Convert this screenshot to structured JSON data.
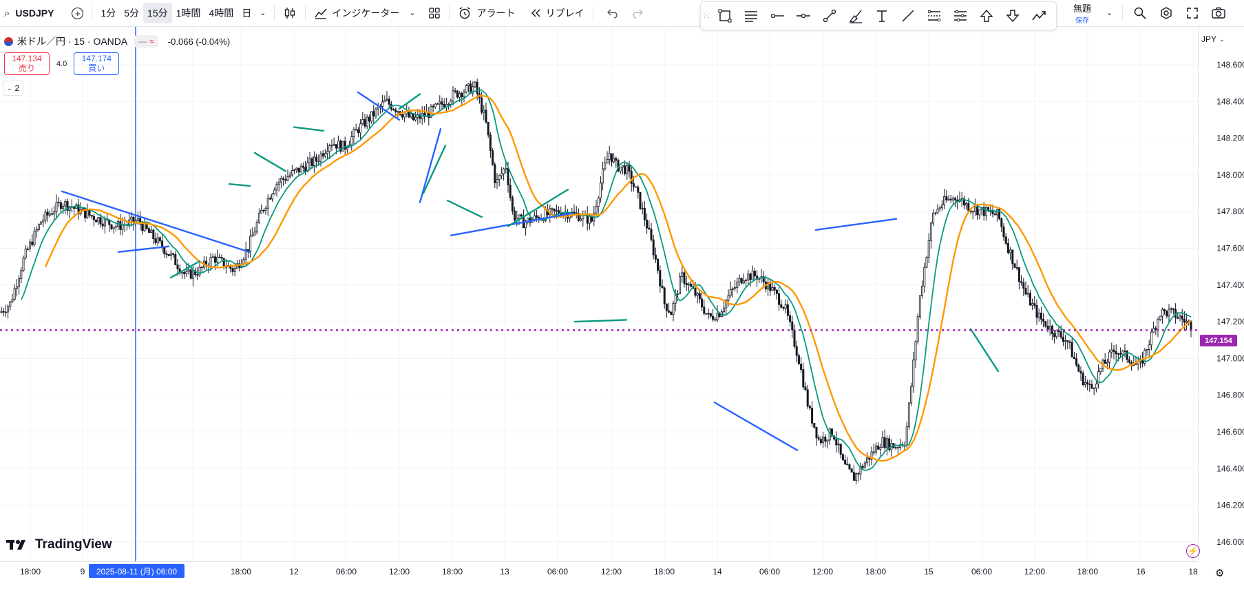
{
  "toolbar": {
    "symbol": "USDJPY",
    "intervals": [
      "1分",
      "5分",
      "15分",
      "1時間",
      "4時間",
      "日"
    ],
    "active_interval": "15分",
    "indicators_label": "インジケーター",
    "alert_label": "アラート",
    "replay_label": "リプレイ"
  },
  "layout": {
    "title": "無題",
    "save_label": "保存"
  },
  "legend": {
    "title": "米ドル／円 · 15 · OANDA",
    "change": "-0.066 (-0.04%)",
    "sell_price": "147.134",
    "sell_label": "売り",
    "spread": "4.0",
    "buy_price": "147.174",
    "buy_label": "買い",
    "indicator_count": "2"
  },
  "axis": {
    "currency": "JPY",
    "current_price": "147.154",
    "crosshair_date": "2025-08-11 (月)   06:00"
  },
  "brand": {
    "logo_text": "TradingView"
  },
  "colors": {
    "candle": "#131722",
    "ma_fast": "#089981",
    "ma_slow": "#ff9800",
    "trendline_blue": "#2962ff",
    "trendline_green": "#089981",
    "price_line": "#9c27b0",
    "crosshair": "#2962ff"
  },
  "chart_data": {
    "type": "candlestick",
    "symbol": "USDJPY",
    "timeframe": "15",
    "y_ticks": [
      "148.600",
      "148.400",
      "148.200",
      "148.000",
      "147.800",
      "147.600",
      "147.400",
      "147.200",
      "147.000",
      "146.800",
      "146.600",
      "146.400",
      "146.200",
      "146.000"
    ],
    "ylim": [
      145.98,
      148.72
    ],
    "x_ticks": [
      "18:00",
      "9",
      "12:00",
      "18:00",
      "12",
      "06:00",
      "12:00",
      "18:00",
      "13",
      "06:00",
      "12:00",
      "18:00",
      "14",
      "06:00",
      "12:00",
      "18:00",
      "15",
      "06:00",
      "12:00",
      "18:00",
      "16",
      "18"
    ],
    "current_price": 147.154,
    "path": [
      [
        0,
        147.25
      ],
      [
        15,
        147.3
      ],
      [
        35,
        147.55
      ],
      [
        60,
        147.75
      ],
      [
        90,
        147.85
      ],
      [
        130,
        147.78
      ],
      [
        170,
        147.72
      ],
      [
        200,
        147.75
      ],
      [
        225,
        147.65
      ],
      [
        250,
        147.55
      ],
      [
        270,
        147.45
      ],
      [
        290,
        147.48
      ],
      [
        310,
        147.55
      ],
      [
        340,
        147.48
      ],
      [
        360,
        147.6
      ],
      [
        380,
        147.8
      ],
      [
        400,
        147.95
      ],
      [
        430,
        148.02
      ],
      [
        460,
        148.08
      ],
      [
        480,
        148.18
      ],
      [
        500,
        148.15
      ],
      [
        520,
        148.25
      ],
      [
        540,
        148.32
      ],
      [
        560,
        148.4
      ],
      [
        580,
        148.35
      ],
      [
        600,
        148.3
      ],
      [
        620,
        148.33
      ],
      [
        640,
        148.38
      ],
      [
        660,
        148.44
      ],
      [
        690,
        148.48
      ],
      [
        705,
        148.3
      ],
      [
        720,
        147.95
      ],
      [
        735,
        148.05
      ],
      [
        745,
        147.78
      ],
      [
        760,
        147.74
      ],
      [
        790,
        147.78
      ],
      [
        815,
        147.8
      ],
      [
        840,
        147.78
      ],
      [
        860,
        147.75
      ],
      [
        875,
        148.0
      ],
      [
        885,
        148.12
      ],
      [
        895,
        148.05
      ],
      [
        910,
        148.03
      ],
      [
        925,
        147.9
      ],
      [
        940,
        147.72
      ],
      [
        955,
        147.5
      ],
      [
        965,
        147.3
      ],
      [
        975,
        147.25
      ],
      [
        990,
        147.45
      ],
      [
        1010,
        147.35
      ],
      [
        1030,
        147.22
      ],
      [
        1045,
        147.25
      ],
      [
        1060,
        147.35
      ],
      [
        1080,
        147.45
      ],
      [
        1100,
        147.45
      ],
      [
        1120,
        147.38
      ],
      [
        1140,
        147.28
      ],
      [
        1160,
        147.0
      ],
      [
        1175,
        146.72
      ],
      [
        1190,
        146.55
      ],
      [
        1210,
        146.6
      ],
      [
        1225,
        146.42
      ],
      [
        1240,
        146.35
      ],
      [
        1260,
        146.45
      ],
      [
        1280,
        146.55
      ],
      [
        1300,
        146.52
      ],
      [
        1315,
        146.55
      ],
      [
        1325,
        146.9
      ],
      [
        1335,
        147.3
      ],
      [
        1345,
        147.55
      ],
      [
        1355,
        147.78
      ],
      [
        1370,
        147.85
      ],
      [
        1390,
        147.88
      ],
      [
        1410,
        147.82
      ],
      [
        1430,
        147.8
      ],
      [
        1450,
        147.78
      ],
      [
        1460,
        147.65
      ],
      [
        1475,
        147.5
      ],
      [
        1490,
        147.35
      ],
      [
        1510,
        147.22
      ],
      [
        1530,
        147.15
      ],
      [
        1550,
        147.1
      ],
      [
        1570,
        146.9
      ],
      [
        1585,
        146.83
      ],
      [
        1600,
        146.95
      ],
      [
        1620,
        147.05
      ],
      [
        1640,
        147.0
      ],
      [
        1655,
        146.95
      ],
      [
        1670,
        147.1
      ],
      [
        1685,
        147.25
      ],
      [
        1700,
        147.25
      ],
      [
        1715,
        147.22
      ],
      [
        1730,
        147.18
      ]
    ],
    "trendlines": [
      {
        "color": "blue",
        "points": [
          [
            90,
            147.91
          ],
          [
            362,
            147.58
          ]
        ]
      },
      {
        "color": "blue",
        "points": [
          [
            172,
            147.58
          ],
          [
            245,
            147.61
          ]
        ]
      },
      {
        "color": "green",
        "points": [
          [
            248,
            147.44
          ],
          [
            290,
            147.53
          ]
        ]
      },
      {
        "color": "green",
        "points": [
          [
            333,
            147.95
          ],
          [
            363,
            147.94
          ]
        ]
      },
      {
        "color": "green",
        "points": [
          [
            370,
            148.12
          ],
          [
            415,
            148.02
          ]
        ]
      },
      {
        "color": "green",
        "points": [
          [
            427,
            148.26
          ],
          [
            470,
            148.24
          ]
        ]
      },
      {
        "color": "blue",
        "points": [
          [
            520,
            148.45
          ],
          [
            580,
            148.3
          ]
        ]
      },
      {
        "color": "green",
        "points": [
          [
            580,
            148.36
          ],
          [
            610,
            148.44
          ]
        ]
      },
      {
        "color": "blue",
        "points": [
          [
            610,
            147.85
          ],
          [
            640,
            148.25
          ]
        ]
      },
      {
        "color": "green",
        "points": [
          [
            615,
            147.9
          ],
          [
            647,
            148.16
          ]
        ]
      },
      {
        "color": "blue",
        "points": [
          [
            655,
            147.67
          ],
          [
            830,
            147.79
          ]
        ]
      },
      {
        "color": "green",
        "points": [
          [
            650,
            147.86
          ],
          [
            700,
            147.77
          ]
        ]
      },
      {
        "color": "green",
        "points": [
          [
            738,
            147.72
          ],
          [
            825,
            147.92
          ]
        ]
      },
      {
        "color": "green",
        "points": [
          [
            835,
            147.2
          ],
          [
            910,
            147.21
          ]
        ]
      },
      {
        "color": "blue",
        "points": [
          [
            1038,
            146.76
          ],
          [
            1158,
            146.5
          ]
        ]
      },
      {
        "color": "blue",
        "points": [
          [
            1185,
            147.7
          ],
          [
            1302,
            147.76
          ]
        ]
      },
      {
        "color": "green",
        "points": [
          [
            1410,
            147.16
          ],
          [
            1450,
            146.93
          ]
        ]
      }
    ]
  }
}
